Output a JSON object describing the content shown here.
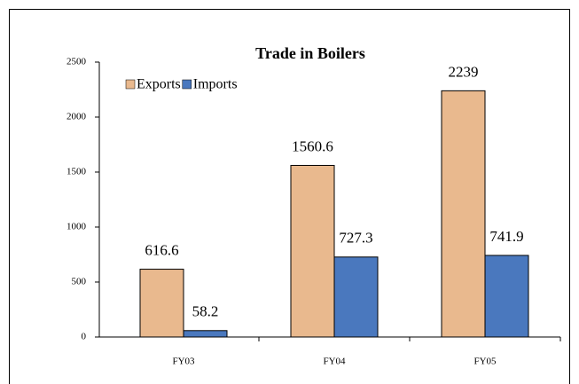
{
  "chart_data": {
    "type": "bar",
    "title": "Trade in Boilers",
    "categories": [
      "FY03",
      "FY04",
      "FY05"
    ],
    "series": [
      {
        "name": "Exports",
        "color": "#e9b98e",
        "values": [
          616.6,
          1560.6,
          2239
        ]
      },
      {
        "name": "Imports",
        "color": "#4a78be",
        "values": [
          58.2,
          727.3,
          741.9
        ]
      }
    ],
    "ylim": [
      0,
      2500
    ],
    "yticks": [
      0,
      500,
      1000,
      1500,
      2000,
      2500
    ],
    "legend": "top-left"
  }
}
